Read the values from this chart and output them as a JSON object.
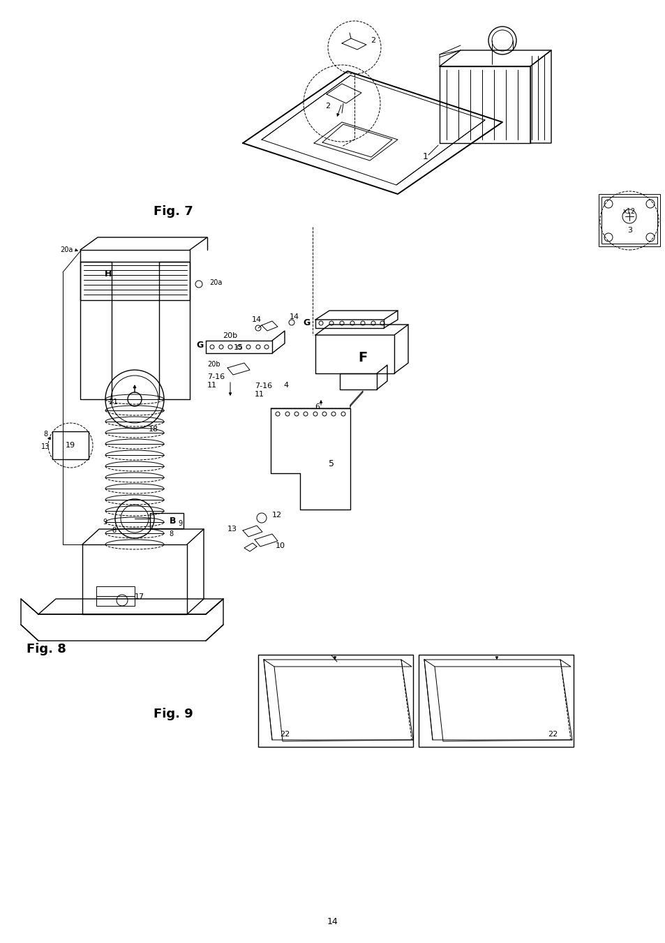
{
  "bg_color": "#ffffff",
  "fig_width": 9.54,
  "fig_height": 13.51,
  "dpi": 100,
  "page_number": "14",
  "fig7_label": "Fig. 7",
  "fig8_label": "Fig. 8",
  "fig9_label": "Fig. 9"
}
